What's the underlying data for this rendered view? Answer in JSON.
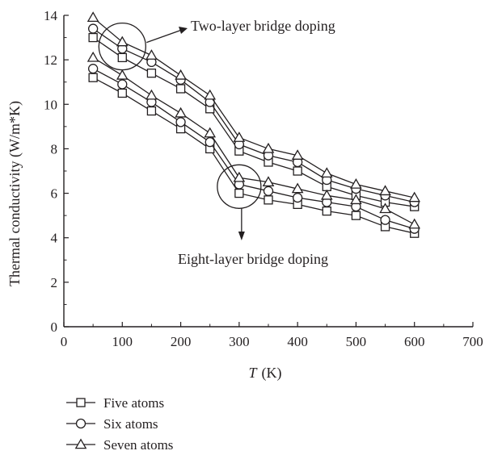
{
  "chart_data": {
    "type": "line",
    "xlabel_var": "T",
    "xlabel_unit": "(K)",
    "ylabel": "Thermal conductivity (W/m*K)",
    "xlim": [
      0,
      700
    ],
    "ylim": [
      0,
      14
    ],
    "xticks": [
      0,
      100,
      200,
      300,
      400,
      500,
      600,
      700
    ],
    "yticks": [
      0,
      2,
      4,
      6,
      8,
      10,
      12,
      14
    ],
    "grid": false,
    "legend_position": "bottom-left",
    "x": [
      50,
      100,
      150,
      200,
      250,
      300,
      350,
      400,
      450,
      500,
      550,
      600
    ],
    "series": [
      {
        "name": "Five atoms",
        "group": "Two-layer bridge doping",
        "marker": "square",
        "values": [
          13.0,
          12.1,
          11.4,
          10.7,
          9.8,
          7.9,
          7.4,
          7.0,
          6.3,
          5.9,
          5.6,
          5.4
        ]
      },
      {
        "name": "Six atoms",
        "group": "Two-layer bridge doping",
        "marker": "circle",
        "values": [
          13.4,
          12.5,
          11.9,
          11.1,
          10.1,
          8.2,
          7.7,
          7.4,
          6.6,
          6.2,
          5.9,
          5.6
        ]
      },
      {
        "name": "Seven atoms",
        "group": "Two-layer bridge doping",
        "marker": "triangle",
        "values": [
          13.9,
          12.8,
          12.2,
          11.3,
          10.4,
          8.5,
          8.0,
          7.7,
          6.9,
          6.4,
          6.1,
          5.8
        ]
      },
      {
        "name": "Five atoms",
        "group": "Eight-layer bridge doping",
        "marker": "square",
        "values": [
          11.2,
          10.5,
          9.7,
          8.9,
          8.0,
          6.0,
          5.7,
          5.5,
          5.2,
          5.0,
          4.5,
          4.2
        ]
      },
      {
        "name": "Six atoms",
        "group": "Eight-layer bridge doping",
        "marker": "circle",
        "values": [
          11.6,
          10.9,
          10.1,
          9.2,
          8.3,
          6.4,
          6.1,
          5.8,
          5.6,
          5.4,
          4.8,
          4.4
        ]
      },
      {
        "name": "Seven atoms",
        "group": "Eight-layer bridge doping",
        "marker": "triangle",
        "values": [
          12.1,
          11.3,
          10.4,
          9.6,
          8.7,
          6.7,
          6.5,
          6.2,
          5.9,
          5.7,
          5.3,
          4.6
        ]
      }
    ],
    "legend": [
      {
        "label": "Five atoms",
        "marker": "square"
      },
      {
        "label": "Six atoms",
        "marker": "circle"
      },
      {
        "label": "Seven atoms",
        "marker": "triangle"
      }
    ],
    "annotations": [
      {
        "text": "Two-layer bridge doping",
        "circle_center": [
          100,
          12.6
        ],
        "arrow_direction": "to-label"
      },
      {
        "text": "Eight-layer bridge doping",
        "circle_center": [
          300,
          6.3
        ],
        "arrow_direction": "down"
      }
    ],
    "line_color": "#231f20"
  }
}
